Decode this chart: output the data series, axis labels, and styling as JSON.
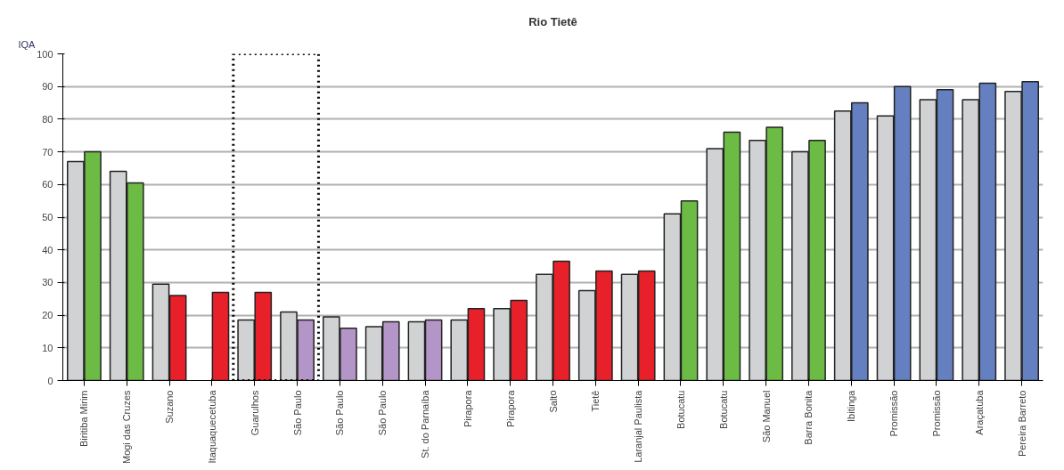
{
  "chart_data": {
    "type": "bar",
    "title": "Rio Tietê",
    "ylabel": "IQA",
    "categories": [
      "Biritiba Mirim",
      "Mogi das Cruzes",
      "Suzano",
      "Itaquaquecetuba",
      "Guarulhos",
      "São Paulo",
      "São Paulo",
      "São Paulo",
      "St. do Parnaíba",
      "Pirapora",
      "Pirapora",
      "Salto",
      "Tietê",
      "Laranjal Paulista",
      "Botucatu",
      "Botucatu",
      "São Manuel",
      "Barra Bonita",
      "Ibitinga",
      "Promissão",
      "Promissão",
      "Araçatuba",
      "Pereira Barreto"
    ],
    "series": [
      {
        "color": "#d1d2d4",
        "values": [
          67,
          64,
          29.5,
          null,
          18.5,
          21,
          19.5,
          16.5,
          18,
          18.5,
          22,
          32.5,
          27.5,
          32.5,
          51,
          71,
          73.5,
          70,
          82.5,
          81,
          86,
          86,
          88.5
        ]
      },
      {
        "colors": [
          "#6cbb45",
          "#6cbb45",
          "#e82029",
          "#e82029",
          "#e82029",
          "#b495c8",
          "#b495c8",
          "#b495c8",
          "#b495c8",
          "#e82029",
          "#e82029",
          "#e82029",
          "#e82029",
          "#e82029",
          "#6cbb45",
          "#6cbb45",
          "#6cbb45",
          "#6cbb45",
          "#6480c0",
          "#6480c0",
          "#6480c0",
          "#6480c0",
          "#6480c0"
        ],
        "values": [
          70,
          60.5,
          26,
          27,
          27,
          18.5,
          16,
          18,
          18.5,
          22,
          24.5,
          36.5,
          33.5,
          33.5,
          55,
          76,
          77.5,
          73.5,
          85,
          90,
          89,
          91,
          91.5
        ]
      }
    ],
    "ylim": [
      0,
      100
    ],
    "yticks": [
      0,
      10,
      20,
      30,
      40,
      50,
      60,
      70,
      80,
      90,
      100
    ],
    "grid": "y"
  }
}
